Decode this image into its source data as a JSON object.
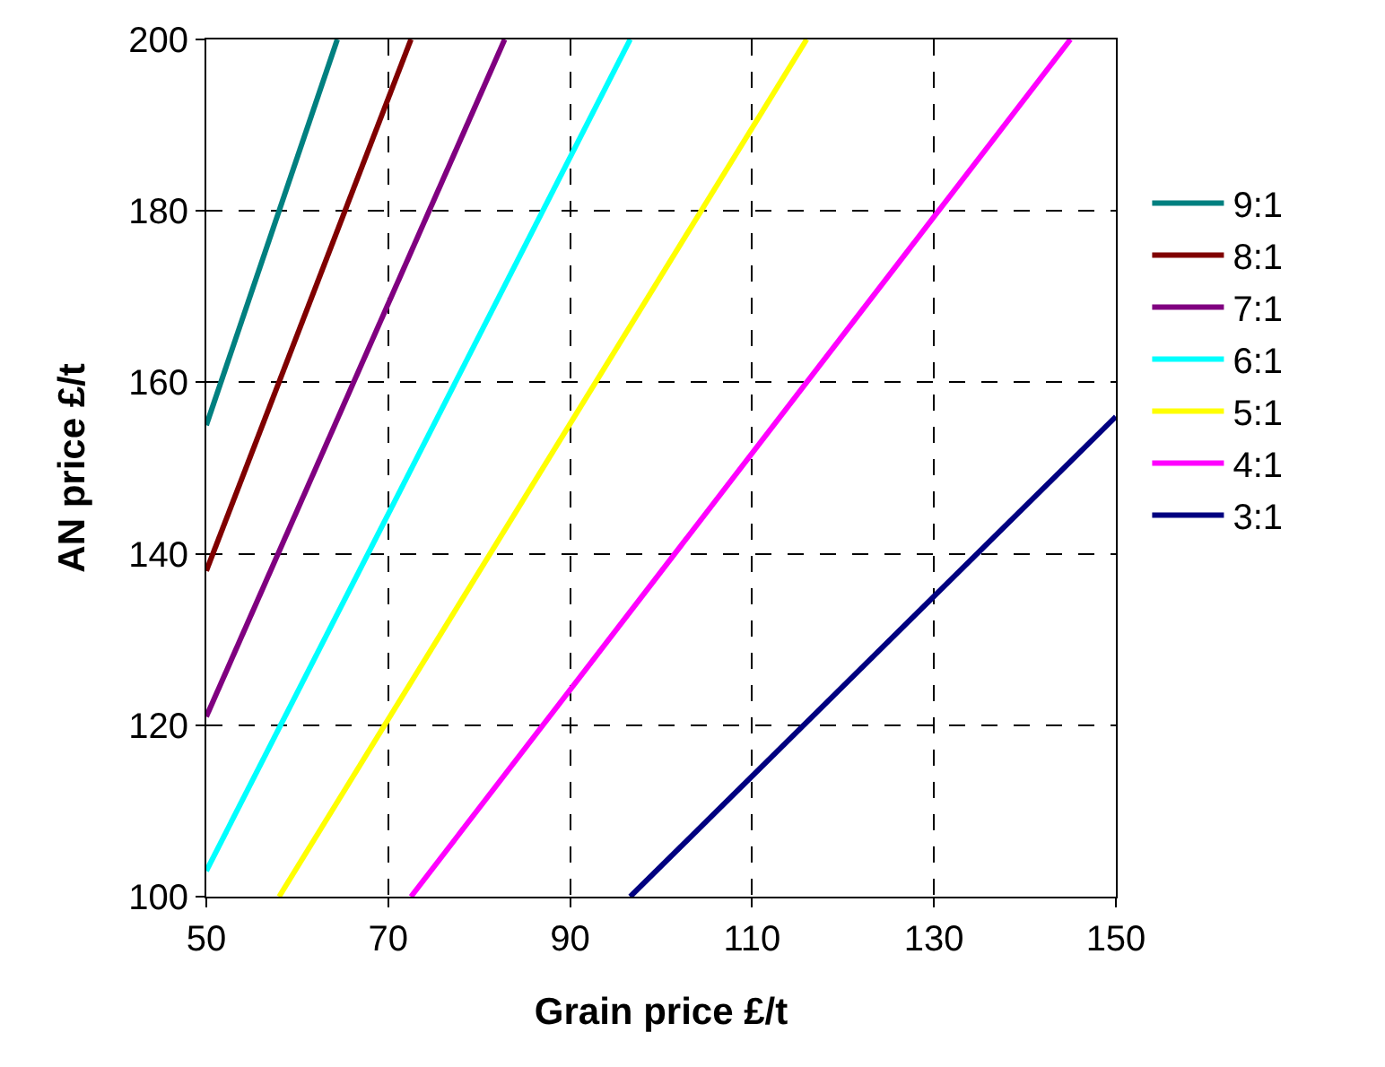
{
  "chart_data": {
    "type": "line",
    "xlabel": "Grain price £/t",
    "ylabel": "AN price £/t",
    "xlim": [
      50,
      150
    ],
    "xticks": [
      50,
      70,
      90,
      110,
      130,
      150
    ],
    "ylim": [
      100,
      200
    ],
    "yticks": [
      100,
      120,
      140,
      160,
      180,
      200
    ],
    "grid": true,
    "legend": "right",
    "marker": "none",
    "line_style": "solid",
    "series": [
      {
        "name": "9:1",
        "color": "#008080",
        "x": [
          50,
          64.4
        ],
        "values": [
          155,
          200
        ]
      },
      {
        "name": "8:1",
        "color": "#800000",
        "x": [
          50,
          72.5
        ],
        "values": [
          138,
          200
        ]
      },
      {
        "name": "7:1",
        "color": "#800080",
        "x": [
          50,
          82.8
        ],
        "values": [
          121,
          200
        ]
      },
      {
        "name": "6:1",
        "color": "#00ffff",
        "x": [
          50,
          96.6
        ],
        "values": [
          103,
          200
        ]
      },
      {
        "name": "5:1",
        "color": "#ffff00",
        "x": [
          58,
          116
        ],
        "values": [
          100,
          200
        ]
      },
      {
        "name": "4:1",
        "color": "#ff00ff",
        "x": [
          72.5,
          145
        ],
        "values": [
          100,
          200
        ]
      },
      {
        "name": "3:1",
        "color": "#000080",
        "x": [
          96.6,
          150
        ],
        "values": [
          100,
          156
        ]
      }
    ]
  }
}
